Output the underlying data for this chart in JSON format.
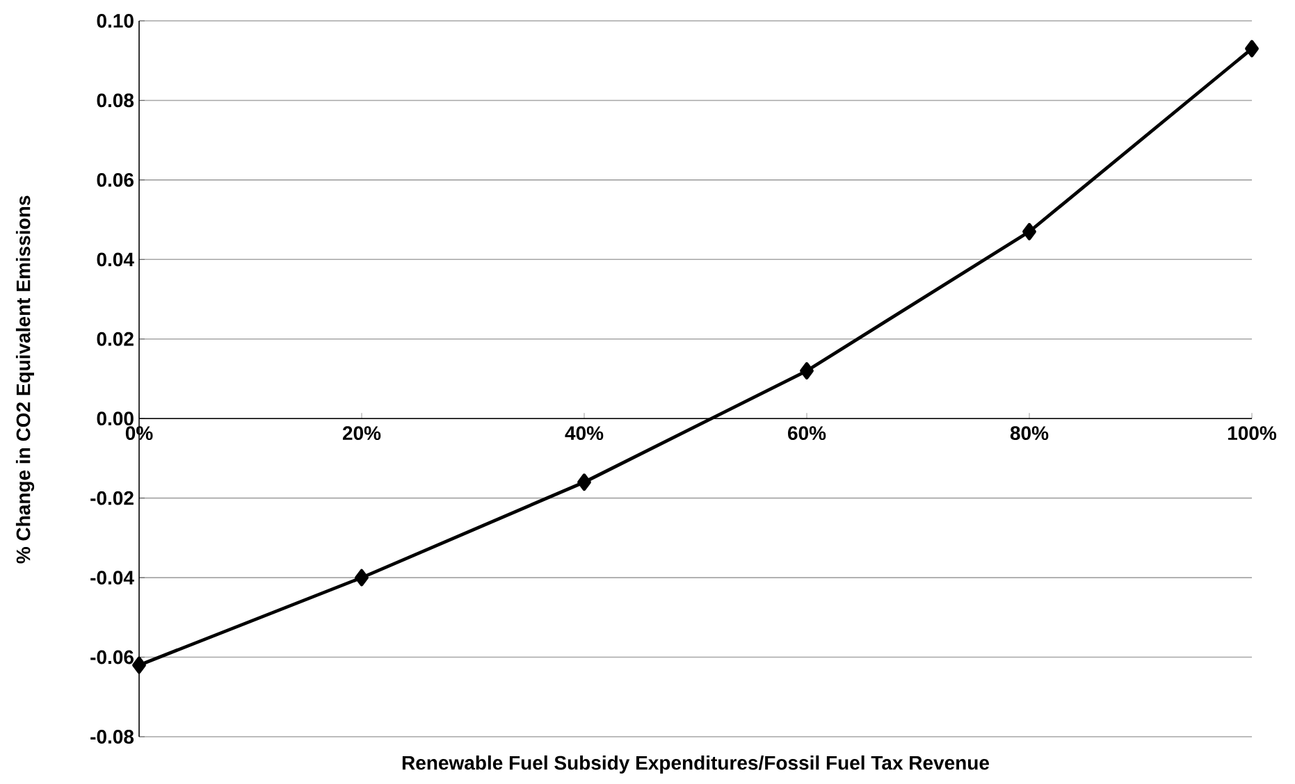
{
  "chart_data": {
    "type": "line",
    "xlabel": "Renewable Fuel Subsidy Expenditures/Fossil Fuel Tax Revenue",
    "ylabel": "% Change in CO2 Equivalent Emissions",
    "categories": [
      "0%",
      "20%",
      "40%",
      "60%",
      "80%",
      "100%"
    ],
    "series": [
      {
        "color": "#000000",
        "values": [
          -0.062,
          -0.04,
          -0.016,
          0.012,
          0.047,
          0.093
        ]
      }
    ],
    "ylim": [
      -0.08,
      0.1
    ],
    "yticks": [
      {
        "value": -0.08,
        "label": "-0.08"
      },
      {
        "value": -0.06,
        "label": "-0.06"
      },
      {
        "value": -0.04,
        "label": "-0.04"
      },
      {
        "value": -0.02,
        "label": "-0.02"
      },
      {
        "value": 0.0,
        "label": "0.00"
      },
      {
        "value": 0.02,
        "label": "0.02"
      },
      {
        "value": 0.04,
        "label": "0.04"
      },
      {
        "value": 0.06,
        "label": "0.06"
      },
      {
        "value": 0.08,
        "label": "0.08"
      },
      {
        "value": 0.1,
        "label": "0.10"
      }
    ],
    "grid": "y",
    "marker": "diamond",
    "line_style": "solid"
  }
}
